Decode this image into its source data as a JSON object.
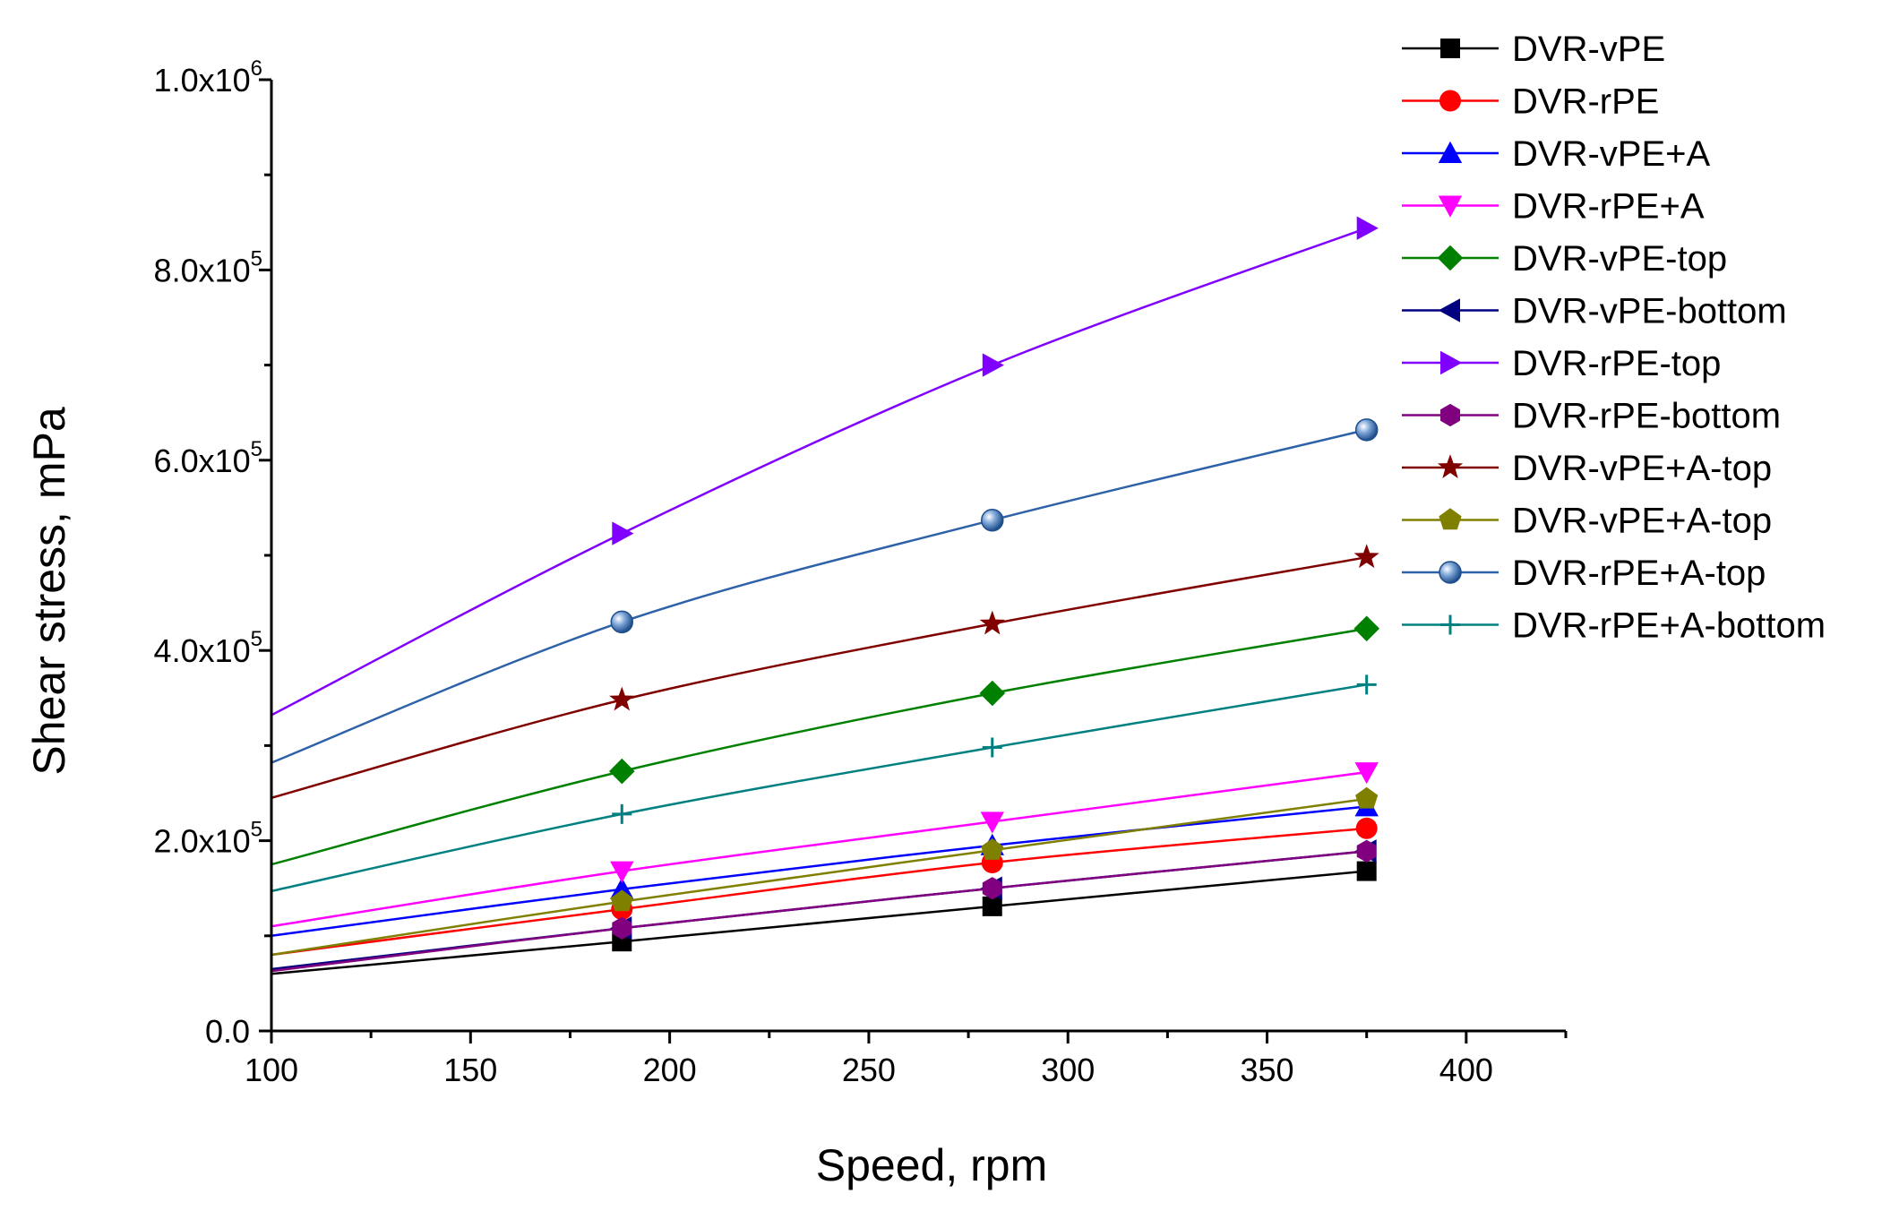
{
  "chart_data": {
    "type": "line",
    "xlabel": "Speed, rpm",
    "ylabel": "Shear stress, mPa",
    "xlim": [
      100,
      425
    ],
    "ylim": [
      0,
      1000000
    ],
    "x_ticks": [
      100,
      150,
      200,
      250,
      300,
      350,
      400
    ],
    "x_tick_labels": [
      "100",
      "150",
      "200",
      "250",
      "300",
      "350",
      "400"
    ],
    "y_ticks": [
      0,
      200000,
      400000,
      600000,
      800000,
      1000000
    ],
    "y_tick_labels": [
      {
        "mant": "0.0",
        "exp": ""
      },
      {
        "mant": "2.0x10",
        "exp": "5"
      },
      {
        "mant": "4.0x10",
        "exp": "5"
      },
      {
        "mant": "6.0x10",
        "exp": "5"
      },
      {
        "mant": "8.0x10",
        "exp": "5"
      },
      {
        "mant": "1.0x10",
        "exp": "6"
      }
    ],
    "grid": false,
    "legend_position": "top-right",
    "x": [
      188,
      281,
      375
    ],
    "series": [
      {
        "name": "DVR-vPE",
        "color": "#000000",
        "marker": "square",
        "fit_start": 60000,
        "values": [
          94000,
          131000,
          168000
        ]
      },
      {
        "name": "DVR-rPE",
        "color": "#ff0000",
        "marker": "circle",
        "fit_start": 80000,
        "values": [
          128000,
          177000,
          213000
        ]
      },
      {
        "name": "DVR-vPE+A",
        "color": "#0000ff",
        "marker": "triangle-up",
        "fit_start": 100000,
        "values": [
          149000,
          195000,
          236000
        ]
      },
      {
        "name": "DVR-rPE+A",
        "color": "#ff00ff",
        "marker": "triangle-down",
        "fit_start": 110000,
        "values": [
          168000,
          220000,
          272000
        ]
      },
      {
        "name": "DVR-vPE-top",
        "color": "#008000",
        "marker": "diamond",
        "fit_start": 175000,
        "values": [
          273000,
          355000,
          423000
        ]
      },
      {
        "name": "DVR-vPE-bottom",
        "color": "#000080",
        "marker": "triangle-left",
        "fit_start": 65000,
        "values": [
          108000,
          150000,
          189000
        ]
      },
      {
        "name": "DVR-rPE-top",
        "color": "#8000ff",
        "marker": "triangle-right",
        "fit_start": 332000,
        "values": [
          523000,
          700000,
          844000
        ]
      },
      {
        "name": "DVR-rPE-bottom",
        "color": "#800080",
        "marker": "hexagon",
        "fit_start": 63000,
        "values": [
          108000,
          150000,
          189000
        ]
      },
      {
        "name": "DVR-vPE+A-top",
        "color": "#800000",
        "marker": "star",
        "fit_start": 245000,
        "values": [
          348000,
          428000,
          498000
        ]
      },
      {
        "name": "DVR-vPE+A-top",
        "color": "#808000",
        "marker": "pentagon",
        "fit_start": 80000,
        "values": [
          136000,
          190000,
          244000
        ]
      },
      {
        "name": "DVR-rPE+A-top",
        "color": "#2e62a8",
        "marker": "ball",
        "fit_start": 282000,
        "values": [
          430000,
          537000,
          632000
        ]
      },
      {
        "name": "DVR-rPE+A-bottom",
        "color": "#008080",
        "marker": "plus",
        "fit_start": 147000,
        "values": [
          228000,
          298000,
          364000
        ]
      }
    ]
  }
}
